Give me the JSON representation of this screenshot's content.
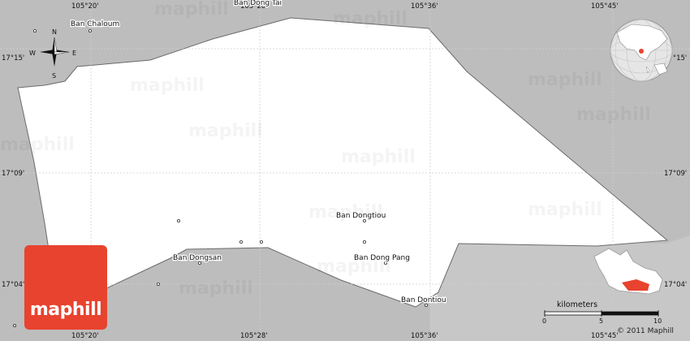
{
  "map": {
    "longitude_labels_top": [
      "105°20'",
      "105°28'",
      "105°36'",
      "105°45'"
    ],
    "longitude_labels_bottom": [
      "105°20'",
      "105°28'",
      "105°36'",
      "105°45'"
    ],
    "latitude_labels_left": [
      "17°15'",
      "17°09'",
      "17°04'"
    ],
    "latitude_labels_right": [
      "17°15'",
      "17°09'",
      "17°04'"
    ],
    "places": {
      "ban_chaloum": "Ban Chaloum",
      "ban_top_partial": "Ban Dong Tai",
      "ban_dongtiou": "Ban Dongtiou",
      "ban_dong_pang": "Ban Dong Pang",
      "ban_dongsan": "Ban Dongsan",
      "ban_dontiou": "Ban Dontiou"
    },
    "compass": {
      "n": "N",
      "s": "S",
      "e": "E",
      "w": "W"
    },
    "watermark": "maphill",
    "region_fill": "#ffffff",
    "outside_fill": "#bdbdbd",
    "highlight_color": "#e8432f"
  },
  "scale": {
    "title": "kilometers",
    "ticks": [
      "0",
      "5",
      "10"
    ]
  },
  "branding": {
    "logo_text": "maphill",
    "copyright": "© 2011 Maphill"
  }
}
